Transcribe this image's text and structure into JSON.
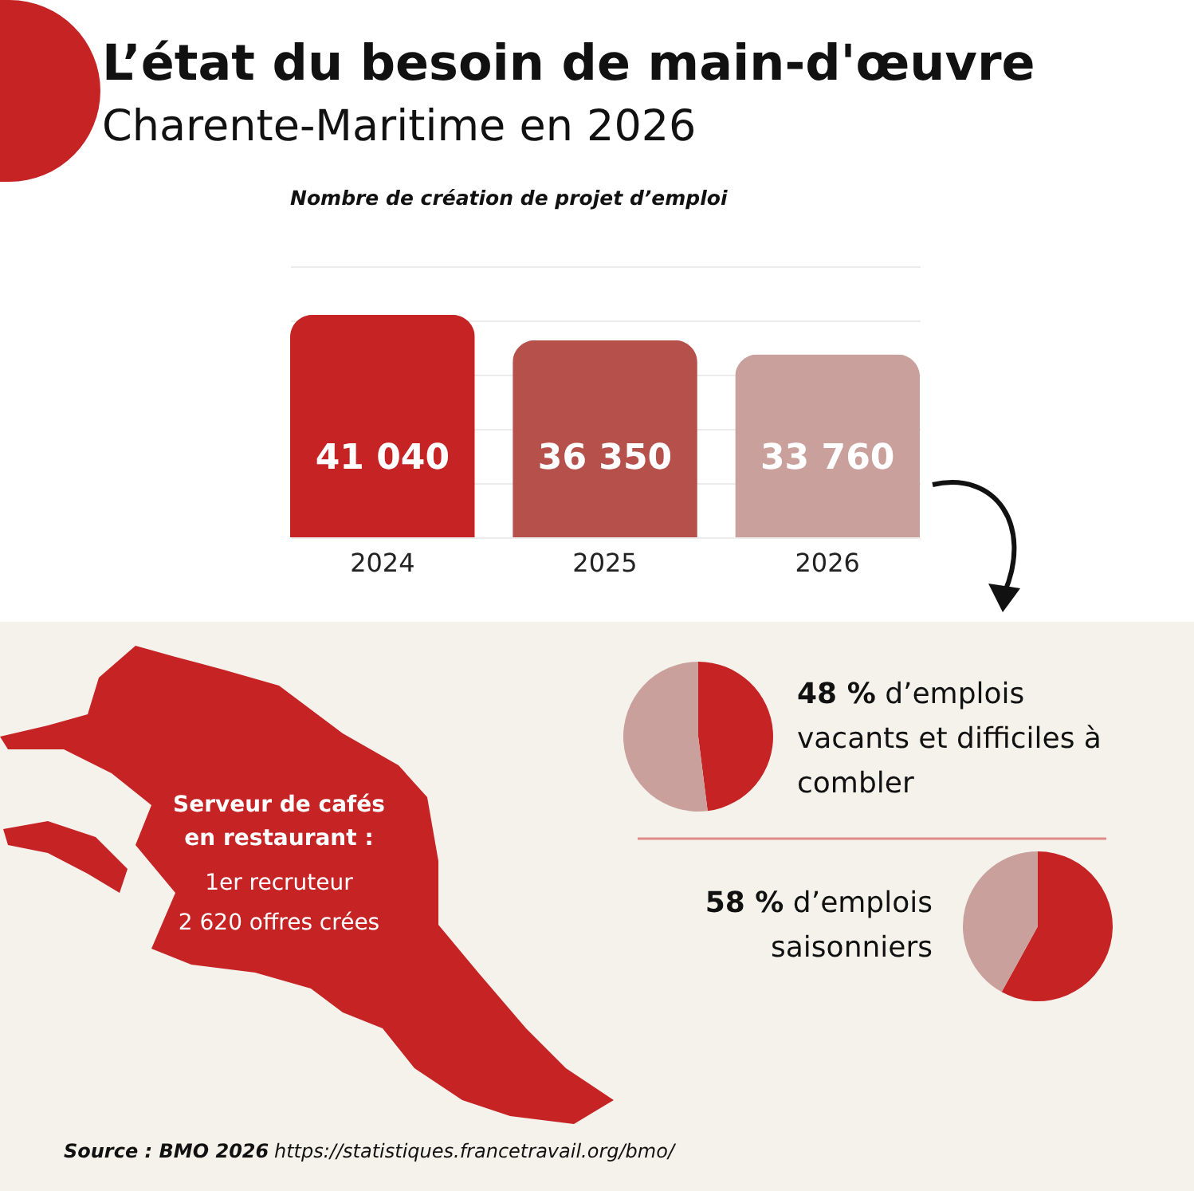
{
  "chart_data": [
    {
      "type": "other",
      "title": "L’état du besoin de main-d'œuvre",
      "subtitle": "Charente-Maritime en 2026",
      "annotations": [
        "Serveur de cafés en restaurant :",
        "1er recruteur",
        "2 620 offres crées",
        "Source : BMO 2026",
        "https://statistiques.francetravail.org/bmo/"
      ]
    },
    {
      "type": "bar",
      "title": "Nombre de création de projet d’emploi",
      "categories": [
        "2024",
        "2025",
        "2026"
      ],
      "values": [
        41040,
        36350,
        33760
      ],
      "value_labels": [
        "41 040",
        "36 350",
        "33 760"
      ],
      "colors": [
        "#c62325",
        "#b5504b",
        "#c9a09b"
      ],
      "ylim": [
        0,
        50000
      ],
      "yticks": [
        0,
        10000,
        20000,
        30000,
        40000,
        50000
      ],
      "grid": "y",
      "tick_labels": "x"
    },
    {
      "type": "pie",
      "categories": [
        null,
        null
      ],
      "values": [
        48,
        52
      ],
      "colors": [
        "#c62325",
        "#c9a09b"
      ],
      "annotations": [
        "48 % d’emplois vacants et difficiles à combler"
      ]
    },
    {
      "type": "pie",
      "categories": [
        null,
        null
      ],
      "values": [
        58,
        42
      ],
      "colors": [
        "#c62325",
        "#c9a09b"
      ],
      "annotations": [
        "58 % d’emplois saisonniers"
      ]
    }
  ]
}
